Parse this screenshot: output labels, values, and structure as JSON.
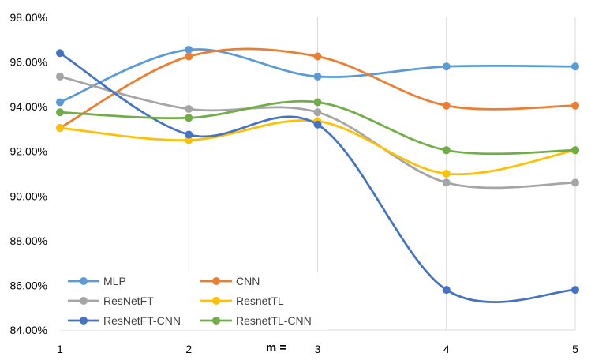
{
  "chart_data": {
    "type": "line",
    "title": "",
    "xlabel": "m =",
    "ylabel": "",
    "x": [
      1,
      2,
      3,
      4,
      5
    ],
    "x_tick_labels": [
      "1",
      "2",
      "3",
      "4",
      "5"
    ],
    "ylim": [
      84,
      98
    ],
    "y_ticks": [
      84,
      86,
      88,
      90,
      92,
      94,
      96,
      98
    ],
    "y_tick_labels": [
      "84.00%",
      "86.00%",
      "88.00%",
      "90.00%",
      "92.00%",
      "94.00%",
      "96.00%",
      "98.00%"
    ],
    "grid": "vertical",
    "legend_position": "bottom-left",
    "smooth": true,
    "series": [
      {
        "name": "MLP",
        "color": "#5B9BD5",
        "values": [
          94.2,
          96.55,
          95.35,
          95.8,
          95.8
        ]
      },
      {
        "name": "CNN",
        "color": "#ED7D31",
        "values": [
          93.05,
          96.25,
          96.25,
          94.05,
          94.05
        ]
      },
      {
        "name": "ResNetFT",
        "color": "#A5A5A5",
        "values": [
          95.35,
          93.9,
          93.75,
          90.6,
          90.6
        ]
      },
      {
        "name": "ResnetTL",
        "color": "#FFC000",
        "values": [
          93.05,
          92.5,
          93.35,
          91.0,
          92.05
        ]
      },
      {
        "name": "ResNetFT-CNN",
        "color": "#4472C4",
        "values": [
          96.4,
          92.75,
          93.2,
          85.8,
          85.8
        ]
      },
      {
        "name": "ResnetTL-CNN",
        "color": "#70AD47",
        "values": [
          93.75,
          93.5,
          94.2,
          92.05,
          92.05
        ]
      }
    ]
  }
}
